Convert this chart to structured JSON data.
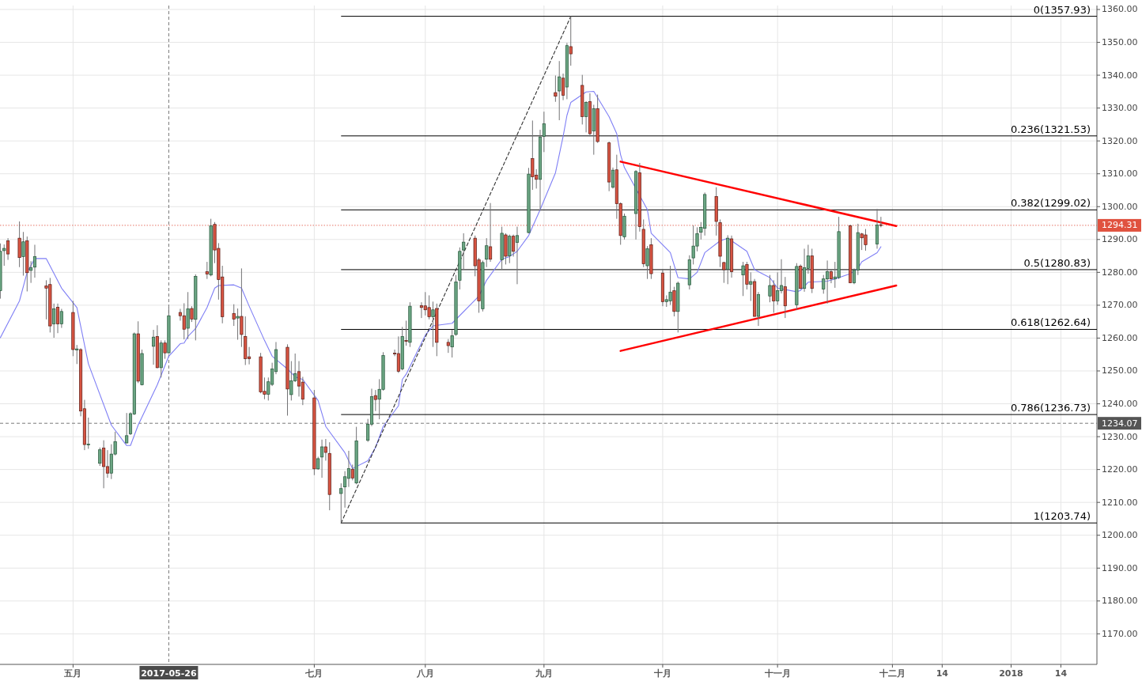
{
  "chart_data": {
    "type": "candlestick",
    "x": [
      "2017-04-12",
      "2017-04-13",
      "2017-04-14",
      "2017-04-17",
      "2017-04-18",
      "2017-04-19",
      "2017-04-20",
      "2017-04-21",
      "2017-04-24",
      "2017-04-25",
      "2017-04-26",
      "2017-04-27",
      "2017-04-28",
      "2017-05-01",
      "2017-05-02",
      "2017-05-03",
      "2017-05-04",
      "2017-05-05",
      "2017-05-08",
      "2017-05-09",
      "2017-05-10",
      "2017-05-11",
      "2017-05-12",
      "2017-05-15",
      "2017-05-16",
      "2017-05-17",
      "2017-05-18",
      "2017-05-19",
      "2017-05-22",
      "2017-05-23",
      "2017-05-24",
      "2017-05-25",
      "2017-05-26",
      "2017-05-29",
      "2017-05-30",
      "2017-05-31",
      "2017-06-01",
      "2017-06-02",
      "2017-06-05",
      "2017-06-06",
      "2017-06-07",
      "2017-06-08",
      "2017-06-09",
      "2017-06-12",
      "2017-06-13",
      "2017-06-14",
      "2017-06-15",
      "2017-06-16",
      "2017-06-19",
      "2017-06-20",
      "2017-06-21",
      "2017-06-22",
      "2017-06-23",
      "2017-06-26",
      "2017-06-27",
      "2017-06-28",
      "2017-06-29",
      "2017-06-30",
      "2017-07-03",
      "2017-07-04",
      "2017-07-05",
      "2017-07-06",
      "2017-07-07",
      "2017-07-10",
      "2017-07-11",
      "2017-07-12",
      "2017-07-13",
      "2017-07-14",
      "2017-07-17",
      "2017-07-18",
      "2017-07-19",
      "2017-07-20",
      "2017-07-21",
      "2017-07-24",
      "2017-07-25",
      "2017-07-26",
      "2017-07-27",
      "2017-07-28",
      "2017-07-31",
      "2017-08-01",
      "2017-08-02",
      "2017-08-03",
      "2017-08-04",
      "2017-08-07",
      "2017-08-08",
      "2017-08-09",
      "2017-08-10",
      "2017-08-11",
      "2017-08-14",
      "2017-08-15",
      "2017-08-16",
      "2017-08-17",
      "2017-08-18",
      "2017-08-21",
      "2017-08-22",
      "2017-08-23",
      "2017-08-24",
      "2017-08-25",
      "2017-08-28",
      "2017-08-29",
      "2017-08-30",
      "2017-08-31",
      "2017-09-01",
      "2017-09-04",
      "2017-09-05",
      "2017-09-06",
      "2017-09-07",
      "2017-09-08",
      "2017-09-11",
      "2017-09-12",
      "2017-09-13",
      "2017-09-14",
      "2017-09-15",
      "2017-09-18",
      "2017-09-19",
      "2017-09-20",
      "2017-09-21",
      "2017-09-22",
      "2017-09-25",
      "2017-09-26",
      "2017-09-27",
      "2017-09-28",
      "2017-09-29",
      "2017-10-02",
      "2017-10-03",
      "2017-10-04",
      "2017-10-05",
      "2017-10-06",
      "2017-10-09",
      "2017-10-10",
      "2017-10-11",
      "2017-10-12",
      "2017-10-13",
      "2017-10-16",
      "2017-10-17",
      "2017-10-18",
      "2017-10-19",
      "2017-10-20",
      "2017-10-23",
      "2017-10-24",
      "2017-10-25",
      "2017-10-26",
      "2017-10-27",
      "2017-10-30",
      "2017-10-31",
      "2017-11-01",
      "2017-11-02",
      "2017-11-03",
      "2017-11-06",
      "2017-11-07",
      "2017-11-08",
      "2017-11-09",
      "2017-11-10",
      "2017-11-13",
      "2017-11-14",
      "2017-11-15",
      "2017-11-16",
      "2017-11-17",
      "2017-11-20",
      "2017-11-21",
      "2017-11-22",
      "2017-11-23",
      "2017-11-24",
      "2017-11-27",
      "2017-11-28"
    ],
    "ohlc": [
      [
        1274.4,
        1288.8,
        1272.0,
        1286.4
      ],
      [
        1286.6,
        1288.5,
        1282.0,
        1287.3
      ],
      [
        1289.6,
        1290.4,
        1283.8,
        1285.6
      ],
      [
        1290.4,
        1295.5,
        1281.6,
        1284.5
      ],
      [
        1284.8,
        1292.3,
        1279.0,
        1289.3
      ],
      [
        1289.6,
        1290.9,
        1274.2,
        1279.9
      ],
      [
        1280.6,
        1283.4,
        1276.8,
        1281.4
      ],
      [
        1281.6,
        1288.4,
        1278.4,
        1284.8
      ],
      [
        1275.9,
        1277.6,
        1265.7,
        1275.2
      ],
      [
        1276.3,
        1278.3,
        1261.7,
        1263.7
      ],
      [
        1264.3,
        1270.5,
        1260.1,
        1268.9
      ],
      [
        1269.4,
        1270.5,
        1261.5,
        1264.3
      ],
      [
        1264.3,
        1268.9,
        1263.1,
        1268.1
      ],
      [
        1267.8,
        1271.3,
        1254.5,
        1256.5
      ],
      [
        1256.4,
        1257.9,
        1252.1,
        1256.7
      ],
      [
        1256.5,
        1256.9,
        1236.2,
        1237.8
      ],
      [
        1238.5,
        1241.2,
        1225.9,
        1227.6
      ],
      [
        1227.6,
        1235.8,
        1226.3,
        1227.7
      ],
      [
        1221.9,
        1226.7,
        1221.1,
        1226.0
      ],
      [
        1226.5,
        1228.9,
        1214.3,
        1220.9
      ],
      [
        1220.9,
        1225.9,
        1217.5,
        1218.9
      ],
      [
        1218.9,
        1227.7,
        1217.1,
        1224.7
      ],
      [
        1224.7,
        1231.5,
        1224.3,
        1228.5
      ],
      [
        1228.1,
        1237.2,
        1227.9,
        1230.3
      ],
      [
        1230.9,
        1237.4,
        1230.5,
        1237.0
      ],
      [
        1236.9,
        1261.7,
        1236.6,
        1261.3
      ],
      [
        1261.3,
        1265.1,
        1246.3,
        1246.9
      ],
      [
        1245.8,
        1256.5,
        1245.6,
        1255.3
      ],
      [
        1257.5,
        1262.5,
        1251.9,
        1260.3
      ],
      [
        1260.5,
        1263.9,
        1250.8,
        1251.0
      ],
      [
        1251.0,
        1259.3,
        1248.0,
        1258.5
      ],
      [
        1258.5,
        1259.3,
        1253.7,
        1255.5
      ],
      [
        1255.5,
        1269.4,
        1255.3,
        1266.8
      ],
      [
        1267.8,
        1268.9,
        1265.3,
        1266.8
      ],
      [
        1266.8,
        1270.6,
        1259.6,
        1262.7
      ],
      [
        1263.0,
        1274.0,
        1259.7,
        1268.9
      ],
      [
        1269.0,
        1269.7,
        1264.9,
        1265.8
      ],
      [
        1265.7,
        1279.4,
        1259.3,
        1278.8
      ],
      [
        1280.2,
        1283.2,
        1278.0,
        1279.5
      ],
      [
        1279.2,
        1296.3,
        1278.8,
        1294.2
      ],
      [
        1294.6,
        1295.3,
        1282.8,
        1286.8
      ],
      [
        1287.3,
        1288.9,
        1271.7,
        1277.8
      ],
      [
        1278.6,
        1282.0,
        1264.5,
        1266.5
      ],
      [
        1267.5,
        1270.3,
        1263.7,
        1265.8
      ],
      [
        1266.1,
        1269.0,
        1259.5,
        1266.6
      ],
      [
        1266.6,
        1281.2,
        1257.3,
        1261.1
      ],
      [
        1260.5,
        1266.6,
        1251.8,
        1253.7
      ],
      [
        1254.3,
        1257.3,
        1252.0,
        1253.7
      ],
      [
        1254.3,
        1255.5,
        1243.2,
        1243.6
      ],
      [
        1243.8,
        1248.0,
        1241.4,
        1242.9
      ],
      [
        1242.9,
        1248.0,
        1241.0,
        1246.7
      ],
      [
        1245.9,
        1252.5,
        1245.4,
        1250.6
      ],
      [
        1249.8,
        1258.8,
        1249.0,
        1256.5
      ],
      [
        1257.2,
        1258.1,
        1236.4,
        1244.5
      ],
      [
        1242.8,
        1253.0,
        1241.0,
        1247.0
      ],
      [
        1247.0,
        1255.3,
        1246.6,
        1249.2
      ],
      [
        1249.8,
        1253.0,
        1242.2,
        1245.4
      ],
      [
        1246.6,
        1248.2,
        1239.6,
        1241.4
      ],
      [
        1241.8,
        1244.2,
        1218.3,
        1220.2
      ],
      [
        1220.2,
        1223.9,
        1219.9,
        1223.3
      ],
      [
        1223.8,
        1229.1,
        1217.5,
        1226.9
      ],
      [
        1226.9,
        1229.3,
        1222.7,
        1225.2
      ],
      [
        1224.9,
        1228.3,
        1207.6,
        1212.4
      ],
      [
        1212.7,
        1215.8,
        1204.0,
        1214.2
      ],
      [
        1214.7,
        1219.5,
        1208.4,
        1217.8
      ],
      [
        1217.3,
        1225.7,
        1214.7,
        1220.3
      ],
      [
        1220.1,
        1221.5,
        1216.7,
        1217.4
      ],
      [
        1215.9,
        1233.0,
        1215.5,
        1228.7
      ],
      [
        1228.9,
        1235.4,
        1228.4,
        1233.8
      ],
      [
        1233.8,
        1244.6,
        1233.2,
        1242.2
      ],
      [
        1242.5,
        1244.2,
        1237.8,
        1241.3
      ],
      [
        1241.4,
        1247.5,
        1235.3,
        1244.4
      ],
      [
        1244.4,
        1255.7,
        1244.0,
        1254.7
      ],
      [
        1255.4,
        1256.5,
        1254.5,
        1255.3
      ],
      [
        1255.3,
        1260.5,
        1249.4,
        1249.9
      ],
      [
        1250.6,
        1263.4,
        1250.2,
        1260.5
      ],
      [
        1259.3,
        1265.3,
        1257.7,
        1259.0
      ],
      [
        1258.7,
        1270.9,
        1257.3,
        1269.7
      ],
      [
        1269.9,
        1270.9,
        1266.1,
        1269.3
      ],
      [
        1269.8,
        1274.0,
        1266.9,
        1268.6
      ],
      [
        1269.3,
        1273.0,
        1265.7,
        1266.5
      ],
      [
        1266.5,
        1271.1,
        1257.3,
        1268.6
      ],
      [
        1269.0,
        1270.5,
        1254.5,
        1258.7
      ],
      [
        1258.7,
        1259.7,
        1255.5,
        1257.7
      ],
      [
        1257.3,
        1262.5,
        1254.1,
        1260.7
      ],
      [
        1261.1,
        1279.2,
        1260.7,
        1277.1
      ],
      [
        1277.6,
        1287.6,
        1274.8,
        1286.4
      ],
      [
        1286.8,
        1291.9,
        1280.8,
        1289.2
      ],
      [
        1290.4,
        1291.2,
        1278.8,
        1282.0
      ],
      [
        1283.8,
        1284.4,
        1267.7,
        1271.3
      ],
      [
        1268.9,
        1283.6,
        1268.1,
        1283.0
      ],
      [
        1284.0,
        1290.4,
        1281.6,
        1288.1
      ],
      [
        1287.8,
        1301.1,
        1283.2,
        1284.0
      ],
      [
        1283.8,
        1293.9,
        1280.8,
        1291.9
      ],
      [
        1291.4,
        1291.9,
        1282.4,
        1284.9
      ],
      [
        1285.0,
        1291.5,
        1282.8,
        1291.0
      ],
      [
        1291.0,
        1291.5,
        1284.8,
        1286.4
      ],
      [
        1289.1,
        1293.9,
        1276.4,
        1291.2
      ],
      [
        1292.1,
        1311.8,
        1291.9,
        1309.9
      ],
      [
        1314.6,
        1326.2,
        1305.1,
        1309.1
      ],
      [
        1309.6,
        1311.4,
        1305.5,
        1308.3
      ],
      [
        1308.3,
        1323.4,
        1298.7,
        1321.2
      ],
      [
        1321.4,
        1328.9,
        1316.6,
        1325.2
      ],
      [
        1334.7,
        1339.9,
        1331.9,
        1333.6
      ],
      [
        1335.2,
        1344.3,
        1326.3,
        1339.5
      ],
      [
        1339.1,
        1340.5,
        1332.4,
        1333.9
      ],
      [
        1336.4,
        1349.8,
        1332.7,
        1349.0
      ],
      [
        1348.7,
        1357.9,
        1342.9,
        1346.5
      ],
      [
        1336.9,
        1340.1,
        1325.0,
        1327.4
      ],
      [
        1327.4,
        1332.1,
        1322.6,
        1331.7
      ],
      [
        1332.0,
        1334.5,
        1321.4,
        1322.2
      ],
      [
        1323.0,
        1331.0,
        1315.8,
        1329.8
      ],
      [
        1329.8,
        1334.1,
        1319.4,
        1319.8
      ],
      [
        1319.4,
        1319.8,
        1304.7,
        1307.5
      ],
      [
        1305.9,
        1311.9,
        1305.5,
        1311.1
      ],
      [
        1311.2,
        1315.8,
        1296.3,
        1300.9
      ],
      [
        1300.9,
        1301.3,
        1288.4,
        1291.2
      ],
      [
        1290.8,
        1297.9,
        1290.0,
        1297.1
      ],
      [
        1297.9,
        1311.1,
        1290.0,
        1310.7
      ],
      [
        1310.3,
        1313.3,
        1292.4,
        1293.9
      ],
      [
        1293.1,
        1296.1,
        1281.6,
        1282.6
      ],
      [
        1282.0,
        1288.0,
        1278.0,
        1287.2
      ],
      [
        1288.4,
        1290.4,
        1278.0,
        1279.6
      ],
      [
        1279.8,
        1280.8,
        1269.7,
        1271.1
      ],
      [
        1271.1,
        1273.0,
        1269.5,
        1271.7
      ],
      [
        1271.3,
        1282.0,
        1270.1,
        1274.0
      ],
      [
        1274.4,
        1275.6,
        1266.6,
        1268.1
      ],
      [
        1268.1,
        1277.2,
        1261.7,
        1276.7
      ],
      [
        1276.2,
        1285.2,
        1274.8,
        1283.8
      ],
      [
        1284.4,
        1294.3,
        1282.4,
        1288.0
      ],
      [
        1288.0,
        1293.7,
        1286.4,
        1291.8
      ],
      [
        1292.2,
        1295.3,
        1290.0,
        1293.7
      ],
      [
        1293.4,
        1304.3,
        1291.2,
        1303.7
      ],
      [
        1303.1,
        1305.9,
        1291.2,
        1295.5
      ],
      [
        1295.1,
        1296.1,
        1281.6,
        1284.9
      ],
      [
        1283.0,
        1283.2,
        1276.8,
        1280.8
      ],
      [
        1280.9,
        1291.3,
        1276.4,
        1290.4
      ],
      [
        1290.2,
        1291.2,
        1278.4,
        1280.2
      ],
      [
        1279.2,
        1283.2,
        1272.8,
        1282.0
      ],
      [
        1282.4,
        1283.2,
        1274.8,
        1276.4
      ],
      [
        1276.4,
        1280.0,
        1271.3,
        1277.2
      ],
      [
        1277.2,
        1278.0,
        1266.5,
        1266.6
      ],
      [
        1266.6,
        1274.0,
        1263.7,
        1273.2
      ],
      [
        1272.8,
        1279.2,
        1270.9,
        1276.0
      ],
      [
        1276.0,
        1277.6,
        1267.7,
        1271.3
      ],
      [
        1271.3,
        1280.0,
        1270.1,
        1274.4
      ],
      [
        1274.4,
        1284.0,
        1273.6,
        1276.0
      ],
      [
        1275.6,
        1278.6,
        1266.1,
        1269.8
      ],
      [
        1270.1,
        1282.8,
        1268.5,
        1281.8
      ],
      [
        1281.9,
        1282.4,
        1274.9,
        1275.1
      ],
      [
        1275.1,
        1287.2,
        1274.1,
        1281.4
      ],
      [
        1281.2,
        1288.4,
        1279.6,
        1285.0
      ],
      [
        1285.0,
        1287.2,
        1273.7,
        1275.1
      ],
      [
        1274.9,
        1279.2,
        1273.5,
        1278.0
      ],
      [
        1278.0,
        1283.6,
        1270.5,
        1280.2
      ],
      [
        1280.2,
        1281.0,
        1276.7,
        1278.0
      ],
      [
        1278.0,
        1283.2,
        1275.3,
        1278.6
      ],
      [
        1278.4,
        1296.9,
        1278.0,
        1292.4
      ],
      [
        1294.2,
        1294.5,
        1276.7,
        1276.8
      ],
      [
        1276.8,
        1281.2,
        1276.4,
        1280.7
      ],
      [
        1280.7,
        1294.8,
        1279.2,
        1292.1
      ],
      [
        1291.7,
        1292.0,
        1286.8,
        1290.5
      ],
      [
        1291.4,
        1293.2,
        1286.6,
        1288.4
      ],
      [
        1288.6,
        1299.3,
        1287.2,
        1294.4
      ],
      [
        1294.5,
        1296.9,
        1293.7,
        1294.31
      ]
    ],
    "series": [
      {
        "type": "line",
        "color": "#7f7ff5",
        "x": [
          "2017-04-12",
          "2017-04-17",
          "2017-04-19",
          "2017-04-21",
          "2017-04-24",
          "2017-04-28",
          "2017-05-02",
          "2017-05-05",
          "2017-05-11",
          "2017-05-15",
          "2017-05-16",
          "2017-05-18",
          "2017-05-23",
          "2017-05-26",
          "2017-05-29",
          "2017-05-30",
          "2017-05-31",
          "2017-06-02",
          "2017-06-05",
          "2017-06-07",
          "2017-06-08",
          "2017-06-12",
          "2017-06-14",
          "2017-06-16",
          "2017-06-20",
          "2017-06-22",
          "2017-06-26",
          "2017-06-28",
          "2017-06-30",
          "2017-07-04",
          "2017-07-06",
          "2017-07-11",
          "2017-07-13",
          "2017-07-17",
          "2017-07-19",
          "2017-07-21",
          "2017-07-25",
          "2017-07-26",
          "2017-07-27",
          "2017-08-01",
          "2017-08-03",
          "2017-08-08",
          "2017-08-15",
          "2017-08-17",
          "2017-08-21",
          "2017-08-23",
          "2017-08-25",
          "2017-08-28",
          "2017-08-31",
          "2017-09-04",
          "2017-09-06",
          "2017-09-07",
          "2017-09-08",
          "2017-09-12",
          "2017-09-14",
          "2017-09-18",
          "2017-09-20",
          "2017-09-21",
          "2017-09-22",
          "2017-09-28",
          "2017-09-29",
          "2017-10-04",
          "2017-10-06",
          "2017-10-09",
          "2017-10-11",
          "2017-10-13",
          "2017-10-17",
          "2017-10-19",
          "2017-10-20",
          "2017-10-24",
          "2017-10-26",
          "2017-10-30",
          "2017-11-01",
          "2017-11-06",
          "2017-11-07",
          "2017-11-09",
          "2017-11-14",
          "2017-11-16",
          "2017-11-20",
          "2017-11-22",
          "2017-11-23",
          "2017-11-27",
          "2017-11-28"
        ],
        "values": [
          1260.1,
          1271.3,
          1280.0,
          1284.2,
          1284.2,
          1275.2,
          1269.3,
          1252.2,
          1233.5,
          1227.3,
          1227.3,
          1233.5,
          1245.8,
          1254.5,
          1258.3,
          1258.5,
          1260.5,
          1262.9,
          1269.3,
          1275.2,
          1276.0,
          1276.2,
          1275.2,
          1269.7,
          1259.3,
          1254.5,
          1250.6,
          1248.2,
          1247.4,
          1241.0,
          1233.1,
          1225.1,
          1220.3,
          1222.7,
          1226.7,
          1233.1,
          1239.4,
          1247.4,
          1249.0,
          1260.9,
          1263.7,
          1264.5,
          1272.8,
          1277.6,
          1284.0,
          1284.8,
          1286.4,
          1291.2,
          1299.1,
          1310.3,
          1321.4,
          1327.8,
          1331.7,
          1334.9,
          1335.1,
          1327.4,
          1322.2,
          1315.8,
          1311.9,
          1299.1,
          1291.9,
          1286.0,
          1278.4,
          1278.0,
          1280.0,
          1286.0,
          1289.6,
          1290.4,
          1289.6,
          1286.4,
          1280.8,
          1278.4,
          1275.2,
          1274.1,
          1274.5,
          1277.0,
          1277.3,
          1278.0,
          1279.6,
          1281.2,
          1283.2,
          1286.0,
          1287.8
        ]
      },
      {
        "type": "line",
        "color": "#ff0000",
        "x": [
          "2017-09-21",
          "2017-12-02"
        ],
        "values": [
          1313.7,
          1294.1
        ]
      },
      {
        "type": "line",
        "color": "#ff0000",
        "x": [
          "2017-09-21",
          "2017-12-02"
        ],
        "values": [
          1256.1,
          1276.0
        ]
      },
      {
        "type": "line",
        "color": "#333333",
        "line_style": "dashed",
        "x": [
          "2017-07-10",
          "2017-09-08"
        ],
        "values": [
          1203.7,
          1357.9
        ]
      }
    ],
    "ref_lines": [
      {
        "axis": "y",
        "value": 1357.93,
        "label": "0(1357.93)",
        "color": "#000000",
        "line_style": "solid"
      },
      {
        "axis": "y",
        "value": 1321.53,
        "label": "0.236(1321.53)",
        "color": "#000000",
        "line_style": "solid"
      },
      {
        "axis": "y",
        "value": 1299.02,
        "label": "0.382(1299.02)",
        "color": "#000000",
        "line_style": "solid"
      },
      {
        "axis": "y",
        "value": 1280.83,
        "label": "0.5(1280.83)",
        "color": "#000000",
        "line_style": "solid"
      },
      {
        "axis": "y",
        "value": 1262.64,
        "label": "0.618(1262.64)",
        "color": "#000000",
        "line_style": "solid"
      },
      {
        "axis": "y",
        "value": 1236.73,
        "label": "0.786(1236.73)",
        "color": "#000000",
        "line_style": "solid"
      },
      {
        "axis": "y",
        "value": 1203.74,
        "label": "1(1203.74)",
        "color": "#000000",
        "line_style": "solid"
      },
      {
        "axis": "y",
        "value": 1294.31,
        "label": "1294.31",
        "color": "#e0523f",
        "line_style": "dotted"
      },
      {
        "axis": "y",
        "value": 1234.07,
        "label": "1234.07",
        "color": "#555555",
        "line_style": "dashed"
      },
      {
        "axis": "x",
        "value": "2017-05-26",
        "label": "2017-05-26",
        "color": "#555555",
        "line_style": "dashed"
      }
    ],
    "xlim": [
      "2017-04-11T22:00",
      "2018-01-23T10:00"
    ],
    "xticks": [
      {
        "value": "2017-05-01",
        "label": "五月"
      },
      {
        "value": "2017-07-03",
        "label": "七月"
      },
      {
        "value": "2017-08-01",
        "label": "八月"
      },
      {
        "value": "2017-09-01",
        "label": "九月"
      },
      {
        "value": "2017-10-02",
        "label": "十月"
      },
      {
        "value": "2017-11-01",
        "label": "十一月"
      },
      {
        "value": "2017-12-01",
        "label": "十二月"
      },
      {
        "value": "2017-12-14",
        "label": "14"
      },
      {
        "value": "2018-01-01",
        "label": "2018"
      },
      {
        "value": "2018-01-14",
        "label": "14"
      }
    ],
    "ylim": [
      1160.7,
      1361.2
    ],
    "yticks": [
      {
        "value": 1170,
        "label": "1170.00"
      },
      {
        "value": 1180,
        "label": "1180.00"
      },
      {
        "value": 1190,
        "label": "1190.00"
      },
      {
        "value": 1200,
        "label": "1200.00"
      },
      {
        "value": 1210,
        "label": "1210.00"
      },
      {
        "value": 1220,
        "label": "1220.00"
      },
      {
        "value": 1230,
        "label": "1230.00"
      },
      {
        "value": 1240,
        "label": "1240.00"
      },
      {
        "value": 1250,
        "label": "1250.00"
      },
      {
        "value": 1260,
        "label": "1260.00"
      },
      {
        "value": 1270,
        "label": "1270.00"
      },
      {
        "value": 1280,
        "label": "1280.00"
      },
      {
        "value": 1290,
        "label": "1290.00"
      },
      {
        "value": 1300,
        "label": "1300.00"
      },
      {
        "value": 1310,
        "label": "1310.00"
      },
      {
        "value": 1320,
        "label": "1320.00"
      },
      {
        "value": 1330,
        "label": "1330.00"
      },
      {
        "value": 1340,
        "label": "1340.00"
      },
      {
        "value": 1350,
        "label": "1350.00"
      },
      {
        "value": 1360,
        "label": "1360.00"
      }
    ],
    "grid": true
  }
}
